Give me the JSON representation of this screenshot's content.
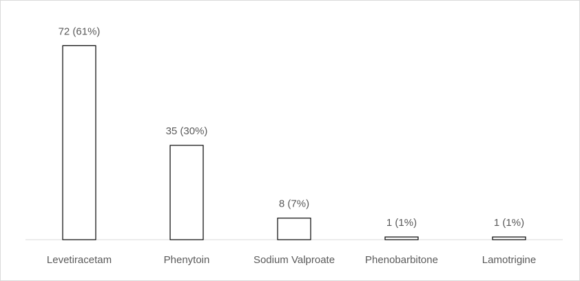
{
  "chart_data": {
    "type": "bar",
    "categories": [
      "Levetiracetam",
      "Phenytoin",
      "Sodium Valproate",
      "Phenobarbitone",
      "Lamotrigine"
    ],
    "values": [
      72,
      35,
      8,
      1,
      1
    ],
    "value_labels": [
      "72 (61%)",
      "35 (30%)",
      "8 (7%)",
      "1 (1%)",
      "1 (1%)"
    ],
    "color": "#ffffff",
    "ylim": [
      0,
      80
    ]
  }
}
